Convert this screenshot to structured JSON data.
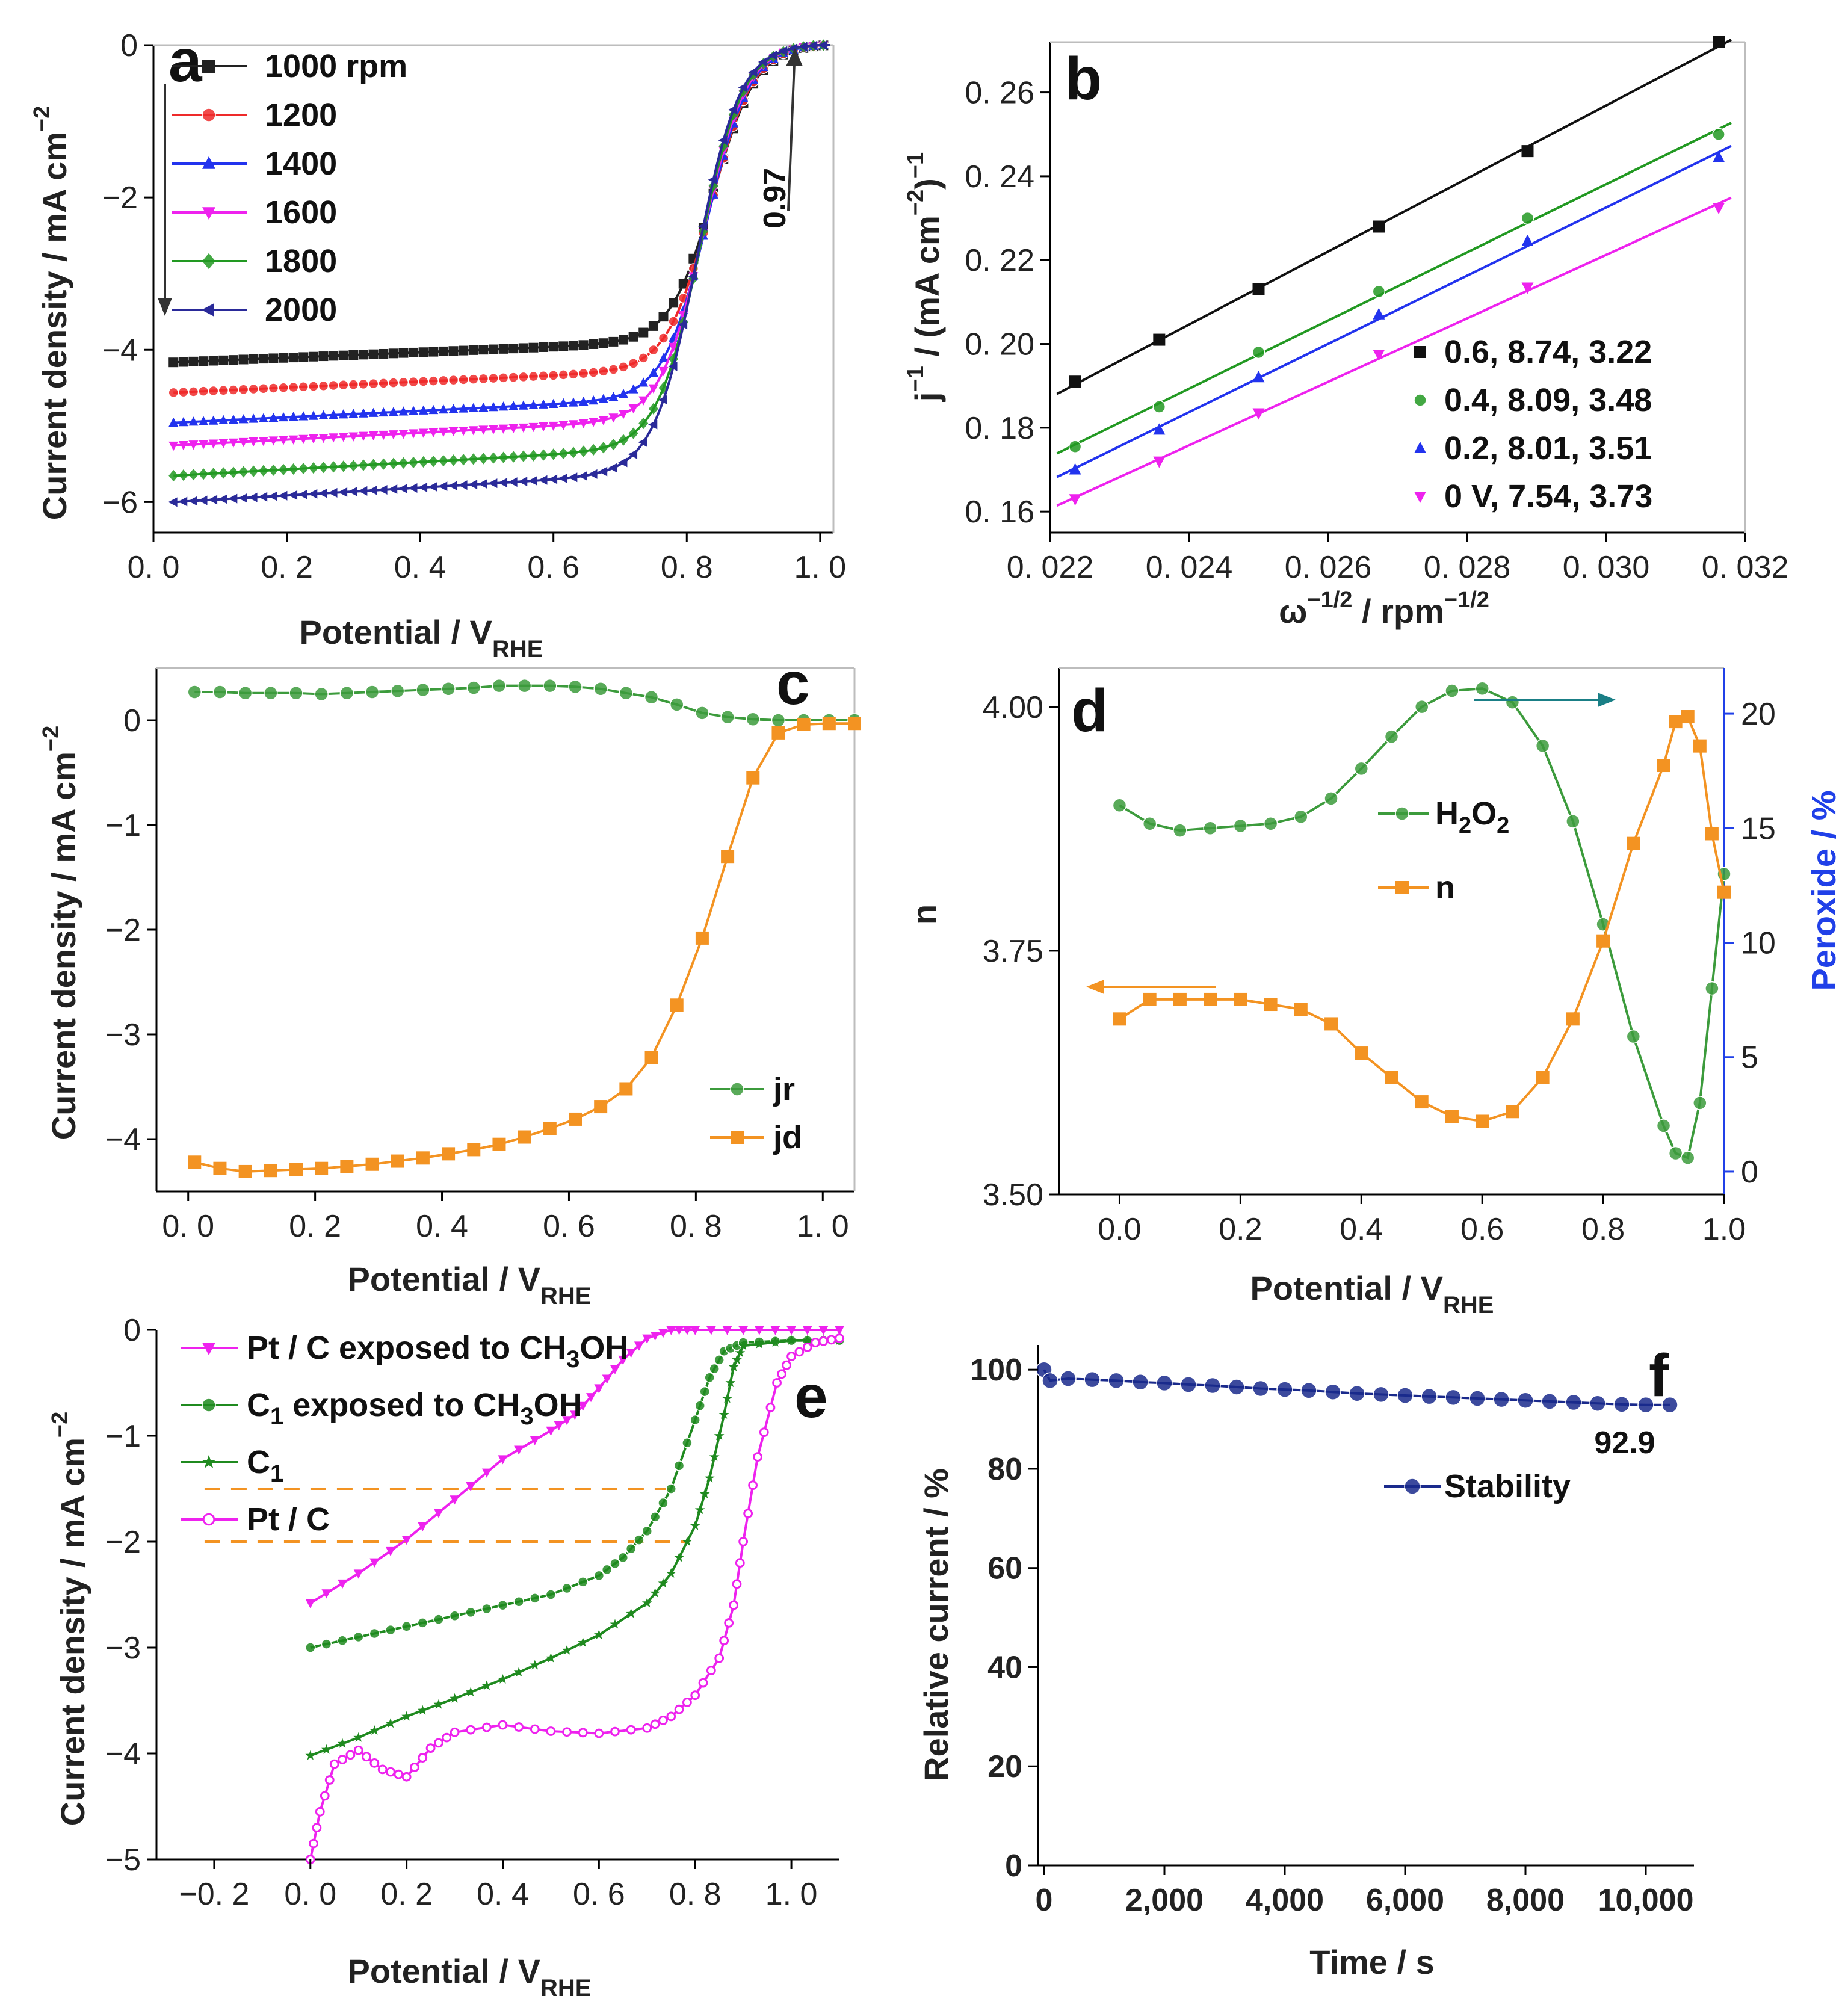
{
  "chart_data": [
    {
      "id": "a",
      "type": "line",
      "panel_label": "a",
      "xlabel": "Potential / V",
      "xlabel_sub": "RHE",
      "ylabel": "Current density / mA cm",
      "ylabel_sup": "−2",
      "xlim": [
        0.0,
        1.02
      ],
      "ylim": [
        -6.4,
        0
      ],
      "xticks": [
        0.0,
        0.2,
        0.4,
        0.6,
        0.8,
        1.0
      ],
      "xtick_labels": [
        "0. 0",
        "0. 2",
        "0. 4",
        "0. 6",
        "0. 8",
        "1. 0"
      ],
      "yticks": [
        0,
        -2,
        -4,
        -6
      ],
      "ytick_labels": [
        "0",
        "−2",
        "−4",
        "−6"
      ],
      "annotation": "0.97",
      "series": [
        {
          "name": "1000 rpm",
          "color": "#222222",
          "marker": "square",
          "plateau": -4.2,
          "halfwave": 0.84
        },
        {
          "name": "1200",
          "color": "#ee2a2a",
          "marker": "circle",
          "plateau": -4.6,
          "halfwave": 0.835
        },
        {
          "name": "1400",
          "color": "#2233ee",
          "marker": "triangle",
          "plateau": -5.0,
          "halfwave": 0.83
        },
        {
          "name": "1600",
          "color": "#ee22ee",
          "marker": "triangle-down",
          "plateau": -5.3,
          "halfwave": 0.825
        },
        {
          "name": "1800",
          "color": "#229922",
          "marker": "diamond",
          "plateau": -5.7,
          "halfwave": 0.82
        },
        {
          "name": "2000",
          "color": "#2a2a99",
          "marker": "triangle-left",
          "plateau": -6.05,
          "halfwave": 0.815
        }
      ]
    },
    {
      "id": "b",
      "type": "scatter",
      "panel_label": "b",
      "xlabel": "ω",
      "xlabel_sup": "−1/2",
      "xlabel_rest": " / rpm",
      "xlabel_sup2": "−1/2",
      "ylabel": "j",
      "xlim": [
        0.022,
        0.032
      ],
      "ylim": [
        0.155,
        0.272
      ],
      "xticks": [
        0.022,
        0.024,
        0.026,
        0.028,
        0.03,
        0.032
      ],
      "xtick_labels": [
        "0. 022",
        "0. 024",
        "0. 026",
        "0. 028",
        "0. 030",
        "0. 032"
      ],
      "yticks": [
        0.16,
        0.18,
        0.2,
        0.22,
        0.24,
        0.26
      ],
      "ytick_labels": [
        "0. 16",
        "0. 18",
        "0. 20",
        "0. 22",
        "0. 24",
        "0. 26"
      ],
      "x": [
        0.02236,
        0.02357,
        0.025,
        0.02673,
        0.02887,
        0.03162
      ],
      "series": [
        {
          "name": "0.6, 8.74, 3.22",
          "color": "#111111",
          "marker": "square",
          "values": [
            0.191,
            0.201,
            0.213,
            0.228,
            0.246,
            0.272
          ]
        },
        {
          "name": "0.4, 8.09, 3.48",
          "color": "#229922",
          "marker": "circle",
          "values": [
            0.1755,
            0.185,
            0.198,
            0.2125,
            0.23,
            0.25
          ]
        },
        {
          "name": "0.2, 8.01, 3.51",
          "color": "#2233ee",
          "marker": "triangle",
          "values": [
            0.17,
            0.1795,
            0.192,
            0.207,
            0.2245,
            0.2445
          ]
        },
        {
          "name": "0 V, 7.54, 3.73",
          "color": "#ee22ee",
          "marker": "triangle-down",
          "values": [
            0.163,
            0.172,
            0.1835,
            0.1975,
            0.2135,
            0.2325
          ]
        }
      ]
    },
    {
      "id": "c",
      "type": "line",
      "panel_label": "c",
      "xlabel": "Potential / V",
      "xlabel_sub": "RHE",
      "ylabel": "Current density / mA cm",
      "ylabel_sup": "−2",
      "xlim": [
        -0.05,
        1.05
      ],
      "ylim": [
        -4.5,
        0.5
      ],
      "xticks": [
        0.0,
        0.2,
        0.4,
        0.6,
        0.8,
        1.0
      ],
      "xtick_labels": [
        "0. 0",
        "0. 2",
        "0. 4",
        "0. 6",
        "0. 8",
        "1. 0"
      ],
      "yticks": [
        0,
        -1,
        -2,
        -3,
        -4
      ],
      "ytick_labels": [
        "0",
        "−1",
        "−2",
        "−3",
        "−4"
      ],
      "series": [
        {
          "name": "jr",
          "color": "#3c9b3c",
          "marker": "circle",
          "x": [
            0.01,
            0.05,
            0.09,
            0.13,
            0.17,
            0.21,
            0.25,
            0.29,
            0.33,
            0.37,
            0.41,
            0.45,
            0.49,
            0.53,
            0.57,
            0.61,
            0.65,
            0.69,
            0.73,
            0.77,
            0.81,
            0.85,
            0.89,
            0.93,
            0.97,
            1.01,
            1.05
          ],
          "values": [
            0.27,
            0.27,
            0.26,
            0.26,
            0.26,
            0.25,
            0.26,
            0.27,
            0.28,
            0.29,
            0.3,
            0.31,
            0.33,
            0.33,
            0.33,
            0.32,
            0.3,
            0.26,
            0.22,
            0.15,
            0.07,
            0.03,
            0.01,
            0.0,
            0.0,
            0.0,
            0.0
          ]
        },
        {
          "name": "jd",
          "color": "#f39322",
          "marker": "square",
          "x": [
            0.01,
            0.05,
            0.09,
            0.13,
            0.17,
            0.21,
            0.25,
            0.29,
            0.33,
            0.37,
            0.41,
            0.45,
            0.49,
            0.53,
            0.57,
            0.61,
            0.65,
            0.69,
            0.73,
            0.77,
            0.81,
            0.85,
            0.89,
            0.93,
            0.97,
            1.01,
            1.05
          ],
          "values": [
            -4.22,
            -4.28,
            -4.31,
            -4.3,
            -4.29,
            -4.28,
            -4.26,
            -4.24,
            -4.21,
            -4.18,
            -4.14,
            -4.1,
            -4.05,
            -3.98,
            -3.9,
            -3.81,
            -3.69,
            -3.52,
            -3.22,
            -2.72,
            -2.08,
            -1.3,
            -0.55,
            -0.12,
            -0.04,
            -0.03,
            -0.03
          ]
        }
      ]
    },
    {
      "id": "d",
      "type": "line",
      "panel_label": "d",
      "xlabel": "Potential / V",
      "xlabel_sub": "RHE",
      "ylabel": "n",
      "y2label": "Peroxide / %",
      "xlim": [
        -0.1,
        1.0
      ],
      "ylim": [
        3.5,
        4.04
      ],
      "y2lim": [
        -1,
        22
      ],
      "xticks": [
        0.0,
        0.2,
        0.4,
        0.6,
        0.8,
        1.0
      ],
      "xtick_labels": [
        "0.0",
        "0.2",
        "0.4",
        "0.6",
        "0.8",
        "1.0"
      ],
      "yticks": [
        3.5,
        3.75,
        4.0
      ],
      "ytick_labels": [
        "3.50",
        "3.75",
        "4.00"
      ],
      "y2ticks": [
        0,
        5,
        10,
        15,
        20
      ],
      "y2tick_labels": [
        "0",
        "5",
        "10",
        "15",
        "20"
      ],
      "series": [
        {
          "name": "H2O2",
          "axis": "right",
          "color": "#3c9b3c",
          "marker": "circle",
          "x": [
            0.0,
            0.05,
            0.1,
            0.15,
            0.2,
            0.25,
            0.3,
            0.35,
            0.4,
            0.45,
            0.5,
            0.55,
            0.6,
            0.65,
            0.7,
            0.75,
            0.8,
            0.85,
            0.9,
            0.92,
            0.94,
            0.96,
            0.98,
            1.0
          ],
          "values": [
            16.0,
            15.2,
            14.9,
            15.0,
            15.1,
            15.2,
            15.5,
            16.3,
            17.6,
            19.0,
            20.3,
            21.0,
            21.1,
            20.5,
            18.6,
            15.3,
            10.8,
            5.9,
            2.0,
            0.8,
            0.6,
            3.0,
            8.0,
            13.0
          ]
        },
        {
          "name": "n",
          "axis": "left",
          "color": "#f39322",
          "marker": "square",
          "x": [
            0.0,
            0.05,
            0.1,
            0.15,
            0.2,
            0.25,
            0.3,
            0.35,
            0.4,
            0.45,
            0.5,
            0.55,
            0.6,
            0.65,
            0.7,
            0.75,
            0.8,
            0.85,
            0.9,
            0.92,
            0.94,
            0.96,
            0.98,
            1.0
          ],
          "values": [
            3.68,
            3.7,
            3.7,
            3.7,
            3.7,
            3.695,
            3.69,
            3.675,
            3.645,
            3.62,
            3.595,
            3.58,
            3.575,
            3.585,
            3.62,
            3.68,
            3.76,
            3.86,
            3.94,
            3.985,
            3.99,
            3.96,
            3.87,
            3.81
          ]
        }
      ],
      "legend": [
        {
          "label_main": "H",
          "label_sub1": "2",
          "label_mid": "O",
          "label_sub2": "2"
        },
        {
          "label": "n"
        }
      ]
    },
    {
      "id": "e",
      "type": "line",
      "panel_label": "e",
      "xlabel": "Potential / V",
      "xlabel_sub": "RHE",
      "ylabel": "Current density / mA cm",
      "ylabel_sup": "−2",
      "xlim": [
        -0.32,
        1.1
      ],
      "ylim": [
        -5,
        0
      ],
      "xticks": [
        -0.2,
        0.0,
        0.2,
        0.4,
        0.6,
        0.8,
        1.0
      ],
      "xtick_labels": [
        "−0. 2",
        "0. 0",
        "0. 2",
        "0. 4",
        "0. 6",
        "0. 8",
        "1. 0"
      ],
      "yticks": [
        0,
        -1,
        -2,
        -3,
        -4,
        -5
      ],
      "ytick_labels": [
        "0",
        "−1",
        "−2",
        "−3",
        "−4",
        "−5"
      ],
      "guides": [
        -1.5,
        -2.0
      ],
      "series": [
        {
          "name": "Pt / C exposed to CH3OH",
          "label_a": "Pt / C exposed to CH",
          "label_sub": "3",
          "label_b": "OH",
          "color": "#ee22ee",
          "marker": "triangle-down",
          "x": [
            0.0,
            0.1,
            0.2,
            0.3,
            0.4,
            0.5,
            0.55,
            0.6,
            0.65,
            0.7,
            0.75,
            0.8,
            0.9,
            1.0,
            1.1
          ],
          "values": [
            -2.58,
            -2.3,
            -1.98,
            -1.6,
            -1.22,
            -0.95,
            -0.8,
            -0.55,
            -0.28,
            -0.08,
            0.0,
            0.0,
            0.0,
            0.0,
            0.0
          ]
        },
        {
          "name": "C1 exposed to CH3OH",
          "label_a": "C",
          "label_sub": "1",
          "label_b": " exposed to CH",
          "label_sub2": "3",
          "label_c": "OH",
          "color": "#1f8a1f",
          "marker": "circle",
          "x": [
            0.0,
            0.1,
            0.2,
            0.3,
            0.4,
            0.5,
            0.6,
            0.65,
            0.7,
            0.75,
            0.8,
            0.83,
            0.86,
            0.9,
            1.0,
            1.1
          ],
          "values": [
            -3.0,
            -2.9,
            -2.8,
            -2.7,
            -2.6,
            -2.5,
            -2.32,
            -2.15,
            -1.9,
            -1.5,
            -0.85,
            -0.45,
            -0.2,
            -0.12,
            -0.1,
            -0.1
          ]
        },
        {
          "name": "C1",
          "label_a": "C",
          "label_sub": "1",
          "color": "#1f8a1f",
          "marker": "star",
          "x": [
            0.0,
            0.1,
            0.2,
            0.3,
            0.4,
            0.5,
            0.6,
            0.7,
            0.75,
            0.8,
            0.83,
            0.86,
            0.88,
            0.9,
            1.0,
            1.1
          ],
          "values": [
            -4.02,
            -3.85,
            -3.65,
            -3.48,
            -3.3,
            -3.1,
            -2.88,
            -2.58,
            -2.3,
            -1.85,
            -1.4,
            -0.8,
            -0.35,
            -0.15,
            -0.1,
            -0.1
          ]
        },
        {
          "name": "Pt / C",
          "label_a": "Pt / C",
          "color": "#ee22ee",
          "marker": "circle-open",
          "x": [
            0.0,
            0.02,
            0.05,
            0.1,
            0.15,
            0.2,
            0.25,
            0.3,
            0.4,
            0.5,
            0.6,
            0.7,
            0.75,
            0.8,
            0.85,
            0.88,
            0.9,
            0.93,
            0.97,
            1.0,
            1.05,
            1.1
          ],
          "values": [
            -5.0,
            -4.55,
            -4.1,
            -3.97,
            -4.15,
            -4.22,
            -3.95,
            -3.8,
            -3.73,
            -3.79,
            -3.81,
            -3.76,
            -3.65,
            -3.45,
            -3.1,
            -2.6,
            -2.0,
            -1.2,
            -0.5,
            -0.25,
            -0.12,
            -0.08
          ]
        }
      ]
    },
    {
      "id": "f",
      "type": "line",
      "panel_label": "f",
      "xlabel": "Time / s",
      "ylabel": "Relative current / %",
      "xlim": [
        -100,
        10800
      ],
      "ylim": [
        0,
        105
      ],
      "xticks": [
        0,
        2000,
        4000,
        6000,
        8000,
        10000
      ],
      "xtick_labels": [
        "0",
        "2,000",
        "4,000",
        "6,000",
        "8,000",
        "10,000"
      ],
      "yticks": [
        0,
        20,
        40,
        60,
        80,
        100
      ],
      "ytick_labels": [
        "0",
        "20",
        "40",
        "60",
        "80",
        "100"
      ],
      "annotation": "92.9",
      "series": [
        {
          "name": "Stability",
          "color": "#1a2a8c",
          "marker": "circle",
          "x": [
            0,
            100,
            400,
            800,
            1200,
            1600,
            2000,
            2400,
            2800,
            3200,
            3600,
            4000,
            4400,
            4800,
            5200,
            5600,
            6000,
            6400,
            6800,
            7200,
            7600,
            8000,
            8400,
            8800,
            9200,
            9600,
            10000,
            10400
          ],
          "values": [
            100,
            97.8,
            98.2,
            98.0,
            97.8,
            97.5,
            97.3,
            97.0,
            96.8,
            96.5,
            96.2,
            96.0,
            95.8,
            95.5,
            95.2,
            95.0,
            94.8,
            94.6,
            94.4,
            94.2,
            94.0,
            93.8,
            93.6,
            93.4,
            93.2,
            93.0,
            92.9,
            92.9
          ]
        }
      ]
    }
  ]
}
